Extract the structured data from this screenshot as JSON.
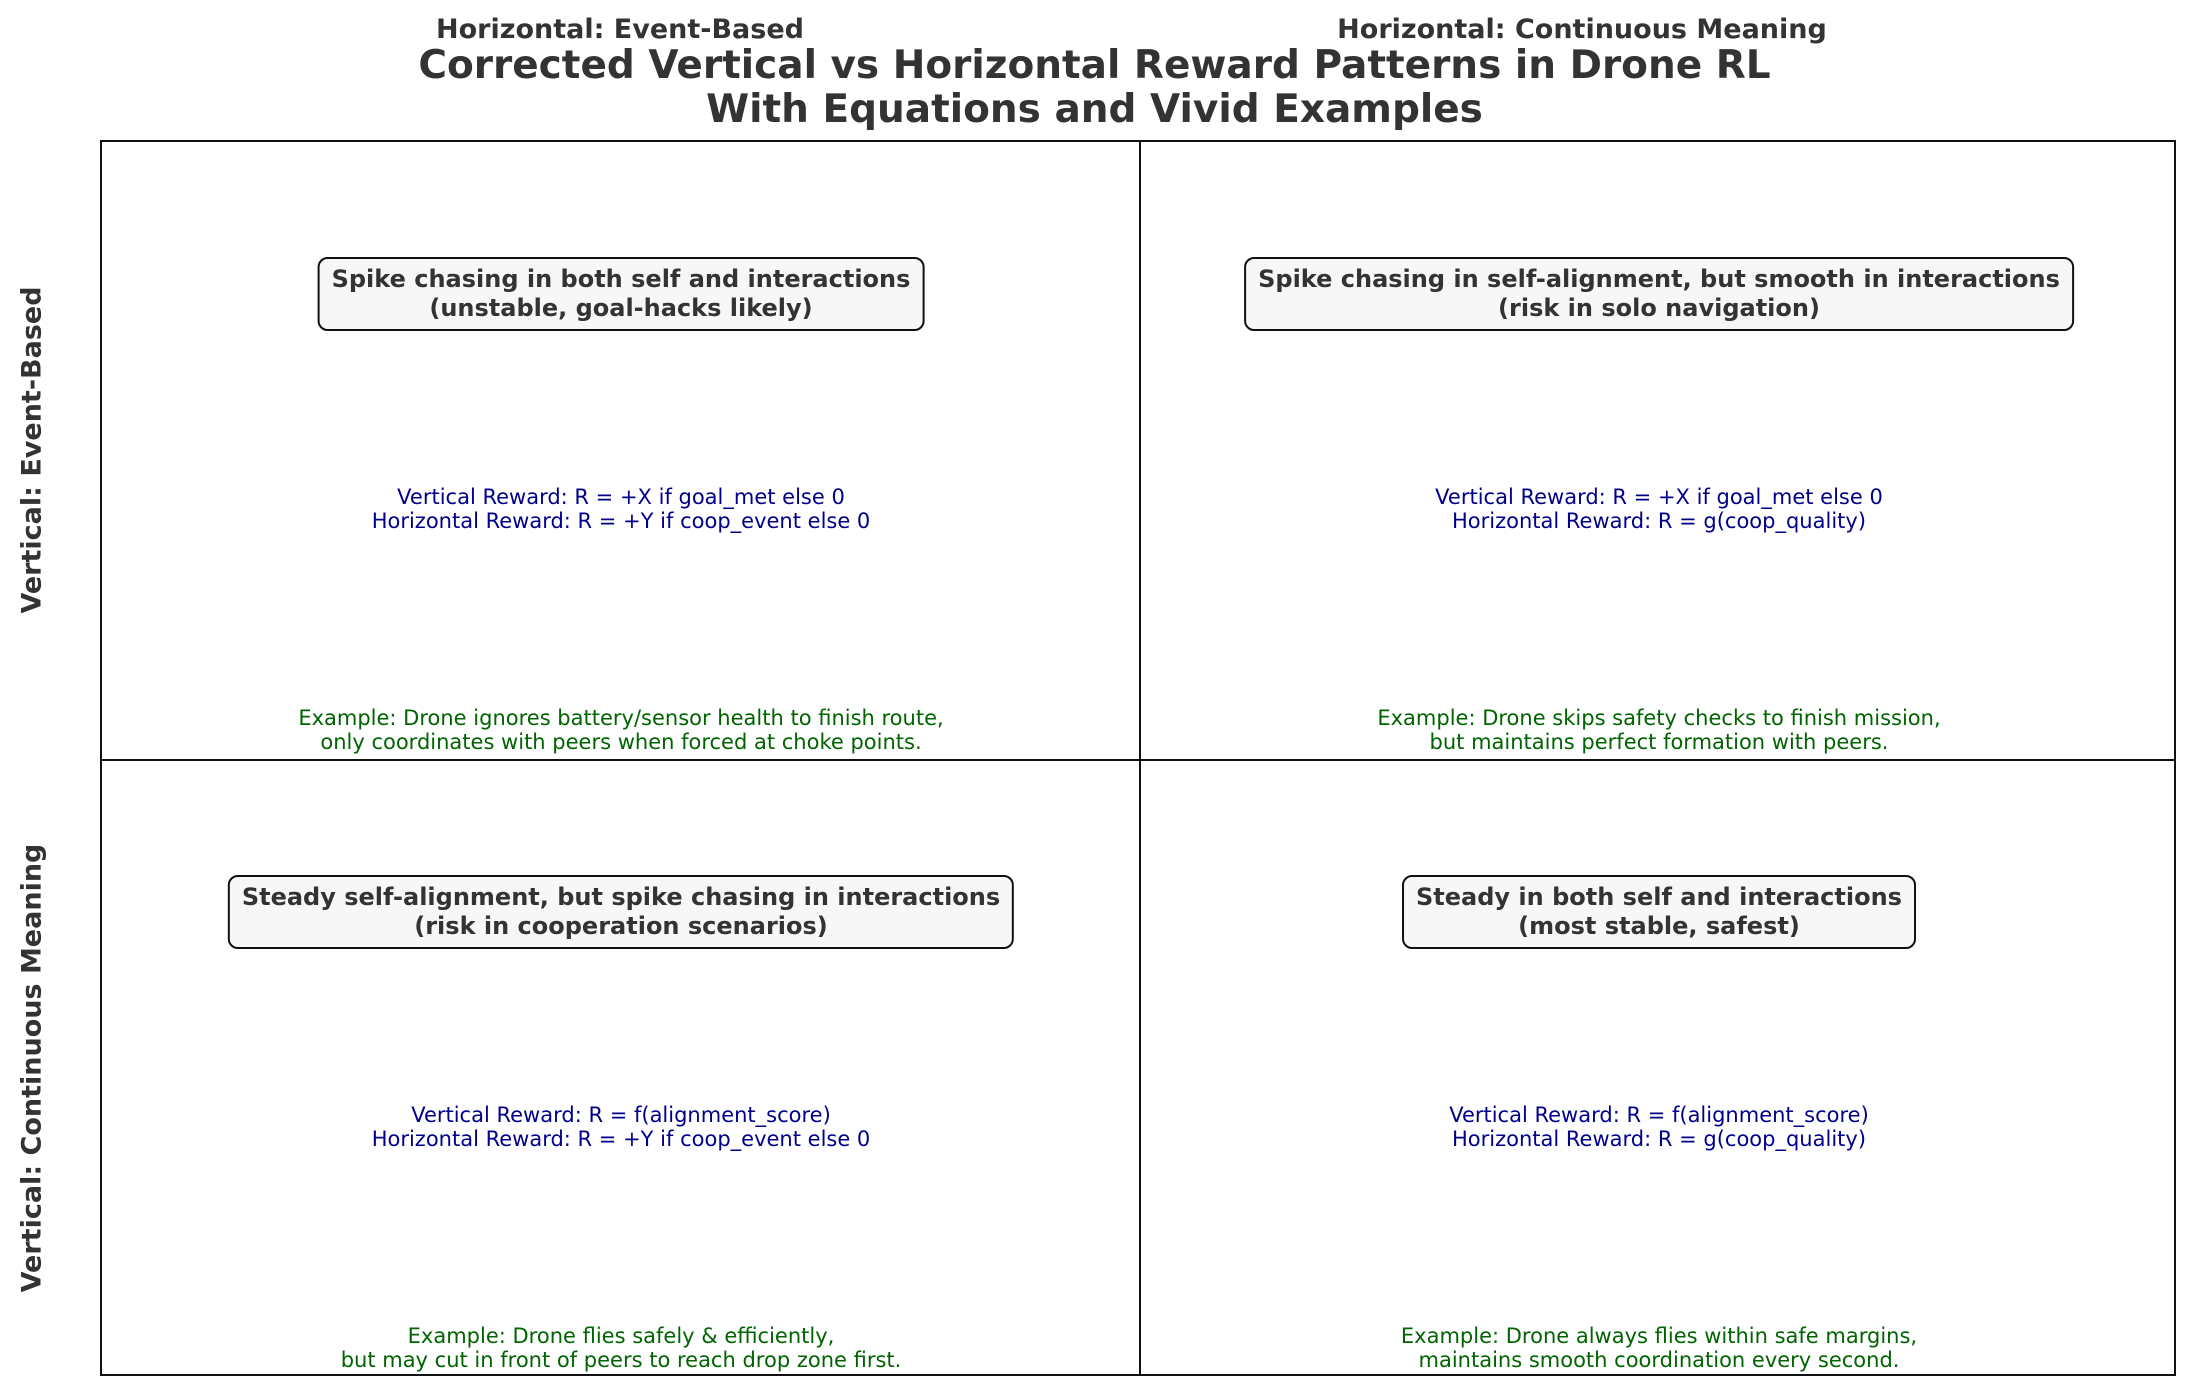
{
  "column_headers": [
    "Horizontal: Event-Based",
    "Horizontal: Continuous Meaning"
  ],
  "title": {
    "line1": "Corrected Vertical vs Horizontal Reward Patterns in Drone RL",
    "line2": "With Equations and Vivid Examples"
  },
  "row_headers": [
    "Vertical: Event-Based",
    "Vertical: Continuous Meaning"
  ],
  "cells": [
    {
      "title_line1": "Spike chasing in both self and interactions",
      "title_line2": "(unstable, goal-hacks likely)",
      "vertical_eq": "Vertical Reward: R = +X if goal_met else 0",
      "horizontal_eq": "Horizontal Reward: R = +Y if coop_event else 0",
      "example_line1": "Example: Drone ignores battery/sensor health to finish route,",
      "example_line2": "only coordinates with peers when forced at choke points."
    },
    {
      "title_line1": "Spike chasing in self-alignment, but smooth in interactions",
      "title_line2": "(risk in solo navigation)",
      "vertical_eq": "Vertical Reward: R = +X if goal_met else 0",
      "horizontal_eq": "Horizontal Reward: R = g(coop_quality)",
      "example_line1": "Example: Drone skips safety checks to finish mission,",
      "example_line2": "but maintains perfect formation with peers."
    },
    {
      "title_line1": "Steady self-alignment, but spike chasing in interactions",
      "title_line2": "(risk in cooperation scenarios)",
      "vertical_eq": "Vertical Reward: R = f(alignment_score)",
      "horizontal_eq": "Horizontal Reward: R = +Y if coop_event else 0",
      "example_line1": "Example: Drone flies safely & efficiently,",
      "example_line2": "but may cut in front of peers to reach drop zone first."
    },
    {
      "title_line1": "Steady in both self and interactions",
      "title_line2": "(most stable, safest)",
      "vertical_eq": "Vertical Reward: R = f(alignment_score)",
      "horizontal_eq": "Horizontal Reward: R = g(coop_quality)",
      "example_line1": "Example: Drone always flies within safe margins,",
      "example_line2": "maintains smooth coordination every second."
    }
  ],
  "colors": {
    "text": "#333333",
    "equations": "#00008b",
    "examples": "#006400",
    "box_fill": "#f7f7f7",
    "lines": "#111111"
  }
}
